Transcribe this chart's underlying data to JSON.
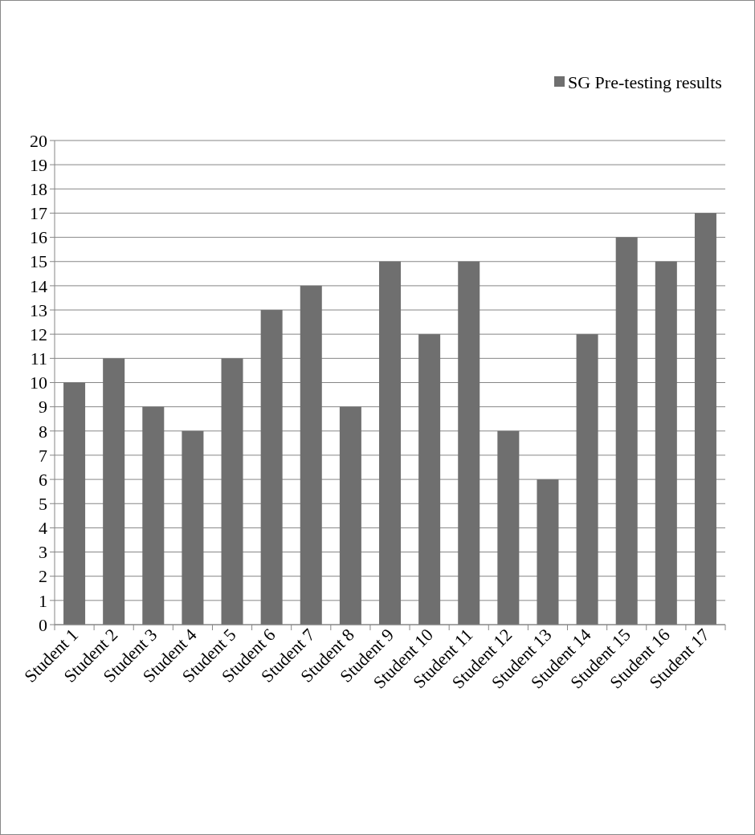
{
  "chart_data": {
    "type": "bar",
    "categories": [
      "Student 1",
      "Student 2",
      "Student 3",
      "Student 4",
      "Student 5",
      "Student 6",
      "Student 7",
      "Student 8",
      "Student 9",
      "Student 10",
      "Student 11",
      "Student 12",
      "Student 13",
      "Student 14",
      "Student 15",
      "Student 16",
      "Student 17"
    ],
    "series": [
      {
        "name": "SG Pre-testing results",
        "color": "#6f6f6f",
        "values": [
          10,
          11,
          9,
          8,
          11,
          13,
          14,
          9,
          15,
          12,
          15,
          8,
          6,
          12,
          16,
          15,
          17
        ]
      }
    ],
    "ylim": [
      0,
      20
    ],
    "yticks": [
      0,
      1,
      2,
      3,
      4,
      5,
      6,
      7,
      8,
      9,
      10,
      11,
      12,
      13,
      14,
      15,
      16,
      17,
      18,
      19,
      20
    ],
    "grid": "y",
    "legend": "top right"
  }
}
